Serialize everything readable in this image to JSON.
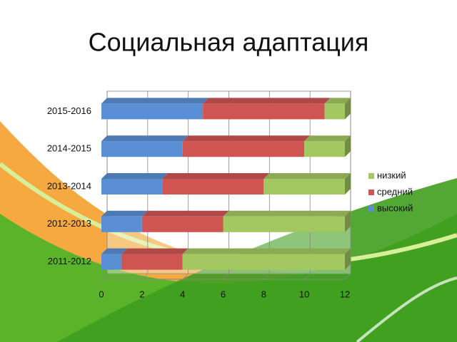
{
  "chart_data": {
    "type": "stacked-bar-horizontal",
    "title": "Социальная адаптация",
    "categories": [
      "2011-2012",
      "2012-2013",
      "2013-2014",
      "2014-2015",
      "2015-2016"
    ],
    "series": [
      {
        "name": "высокий",
        "color": "#5a8fd5",
        "values": [
          1,
          2,
          3,
          4,
          5
        ]
      },
      {
        "name": "средний",
        "color": "#cf5553",
        "values": [
          3,
          4,
          5,
          6,
          6
        ]
      },
      {
        "name": "низкий",
        "color": "#a3c862",
        "values": [
          8,
          6,
          4,
          2,
          1
        ]
      }
    ],
    "xlim": [
      0,
      12
    ],
    "xticks": [
      0,
      2,
      4,
      6,
      8,
      10,
      12
    ],
    "grid": true,
    "legend": "right"
  }
}
